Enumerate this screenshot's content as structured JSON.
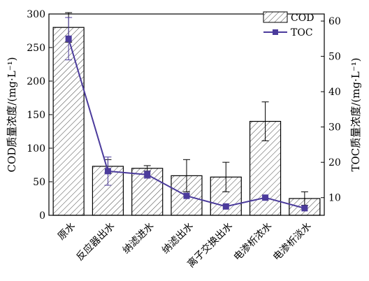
{
  "chart_data": {
    "type": "bar",
    "categories": [
      "原水",
      "反应器出水",
      "纳滤进水",
      "纳滤出水",
      "离子交换出水",
      "电渗析浓水",
      "电渗析淡水"
    ],
    "series": [
      {
        "name": "COD",
        "type": "bar",
        "axis": "left",
        "values": [
          280,
          73,
          70,
          59,
          57,
          140,
          25
        ],
        "error": [
          22,
          10,
          4,
          24,
          22,
          29,
          10
        ]
      },
      {
        "name": "TOC",
        "type": "line",
        "axis": "right",
        "values": [
          55,
          17.5,
          16.5,
          10.5,
          7.5,
          10,
          7
        ],
        "error": [
          6,
          4,
          1,
          0,
          0,
          0,
          0
        ]
      }
    ],
    "ylabel_left": "COD质量浓度/(mg·L⁻¹)",
    "ylabel_right": "TOC质量浓度/(mg·L⁻¹)",
    "ylim_left": [
      0,
      300
    ],
    "ylim_right": [
      5,
      62
    ],
    "yticks_left": [
      "0",
      "50",
      "100",
      "150",
      "200",
      "250",
      "300"
    ],
    "yticks_right": [
      "10",
      "20",
      "30",
      "40",
      "50",
      "60"
    ],
    "legend_position": "top-right",
    "grid": false,
    "colors": {
      "bar_fill": "#ffffff",
      "bar_hatch": "#333333",
      "bar_stroke": "#000000",
      "line": "#4b3b9c",
      "marker": "#4b3b9c"
    }
  }
}
